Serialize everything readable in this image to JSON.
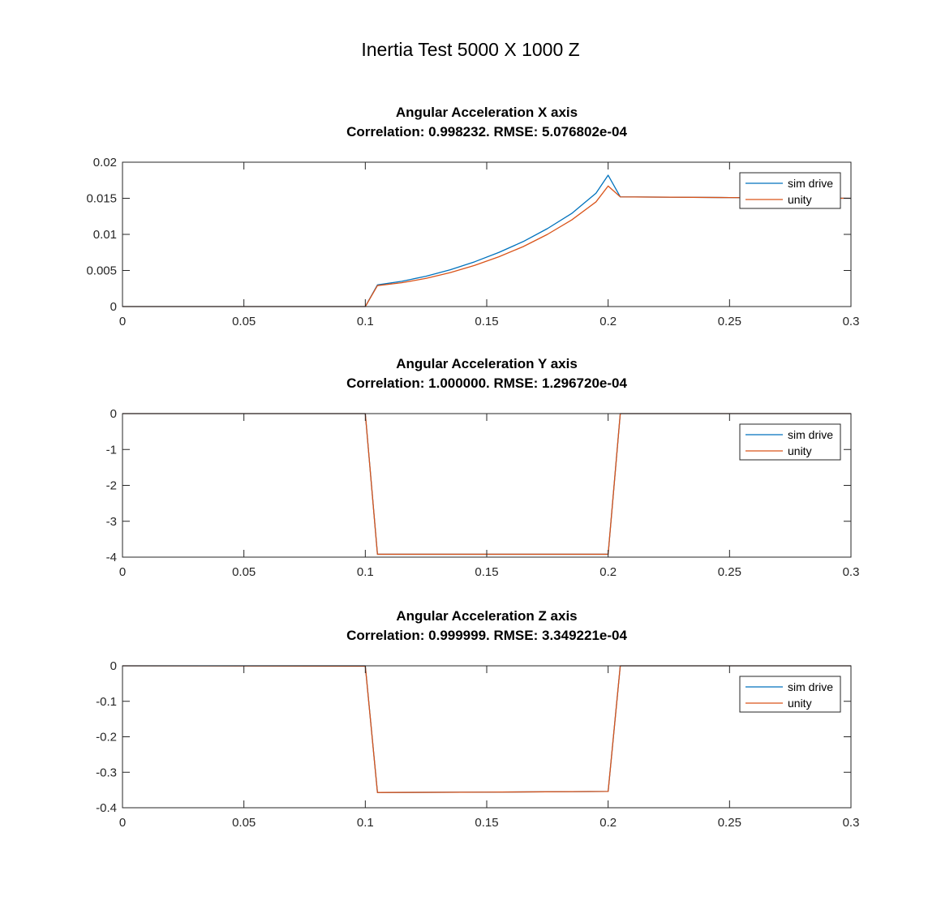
{
  "figure": {
    "suptitle": "Inertia Test 5000 X 1000 Z"
  },
  "colors": {
    "sim_drive": "#0072BD",
    "unity": "#D95319",
    "axes": "#262626",
    "background": "#ffffff"
  },
  "chart_data": [
    {
      "type": "line",
      "title": "Angular Acceleration X axis",
      "subtitle": "Correlation: 0.998232. RMSE: 5.076802e-04",
      "xlabel": "",
      "ylabel": "",
      "xlim": [
        0,
        0.3
      ],
      "ylim": [
        0,
        0.02
      ],
      "xticks": [
        0,
        0.05,
        0.1,
        0.15,
        0.2,
        0.25,
        0.3
      ],
      "xtick_labels": [
        "0",
        "0.05",
        "0.1",
        "0.15",
        "0.2",
        "0.25",
        "0.3"
      ],
      "yticks": [
        0,
        0.005,
        0.01,
        0.015,
        0.02
      ],
      "ytick_labels": [
        "0",
        "0.005",
        "0.01",
        "0.015",
        "0.02"
      ],
      "grid": false,
      "legend_location": "top-right",
      "series": [
        {
          "name": "sim drive",
          "x": [
            0,
            0.1,
            0.105,
            0.115,
            0.125,
            0.135,
            0.145,
            0.155,
            0.165,
            0.175,
            0.185,
            0.195,
            0.2,
            0.205,
            0.25,
            0.3
          ],
          "y": [
            0,
            0,
            0.003,
            0.0035,
            0.0042,
            0.0051,
            0.0062,
            0.0075,
            0.009,
            0.0108,
            0.0129,
            0.0157,
            0.0182,
            0.0152,
            0.0151,
            0.015
          ]
        },
        {
          "name": "unity",
          "x": [
            0,
            0.1,
            0.105,
            0.115,
            0.125,
            0.135,
            0.145,
            0.155,
            0.165,
            0.175,
            0.185,
            0.195,
            0.2,
            0.205,
            0.25,
            0.3
          ],
          "y": [
            0,
            0,
            0.0029,
            0.0033,
            0.0039,
            0.0047,
            0.0057,
            0.0069,
            0.0083,
            0.01,
            0.012,
            0.0145,
            0.0167,
            0.0152,
            0.0151,
            0.015
          ]
        }
      ]
    },
    {
      "type": "line",
      "title": "Angular Acceleration Y axis",
      "subtitle": "Correlation: 1.000000. RMSE: 1.296720e-04",
      "xlabel": "",
      "ylabel": "",
      "xlim": [
        0,
        0.3
      ],
      "ylim": [
        -4,
        0
      ],
      "xticks": [
        0,
        0.05,
        0.1,
        0.15,
        0.2,
        0.25,
        0.3
      ],
      "xtick_labels": [
        "0",
        "0.05",
        "0.1",
        "0.15",
        "0.2",
        "0.25",
        "0.3"
      ],
      "yticks": [
        -4,
        -3,
        -2,
        -1,
        0
      ],
      "ytick_labels": [
        "-4",
        "-3",
        "-2",
        "-1",
        "0"
      ],
      "grid": false,
      "legend_location": "top-right",
      "series": [
        {
          "name": "sim drive",
          "x": [
            0,
            0.1,
            0.105,
            0.2,
            0.205,
            0.3
          ],
          "y": [
            0,
            0,
            -3.92,
            -3.92,
            0,
            0
          ]
        },
        {
          "name": "unity",
          "x": [
            0,
            0.1,
            0.105,
            0.2,
            0.205,
            0.3
          ],
          "y": [
            0,
            0,
            -3.92,
            -3.92,
            0,
            0
          ]
        }
      ]
    },
    {
      "type": "line",
      "title": "Angular Acceleration Z axis",
      "subtitle": "Correlation: 0.999999. RMSE: 3.349221e-04",
      "xlabel": "",
      "ylabel": "",
      "xlim": [
        0,
        0.3
      ],
      "ylim": [
        -0.4,
        0
      ],
      "xticks": [
        0,
        0.05,
        0.1,
        0.15,
        0.2,
        0.25,
        0.3
      ],
      "xtick_labels": [
        "0",
        "0.05",
        "0.1",
        "0.15",
        "0.2",
        "0.25",
        "0.3"
      ],
      "yticks": [
        -0.4,
        -0.3,
        -0.2,
        -0.1,
        0
      ],
      "ytick_labels": [
        "-0.4",
        "-0.3",
        "-0.2",
        "-0.1",
        "0"
      ],
      "grid": false,
      "legend_location": "top-right",
      "series": [
        {
          "name": "sim drive",
          "x": [
            0,
            0.1,
            0.105,
            0.15,
            0.2,
            0.205,
            0.3
          ],
          "y": [
            0,
            0,
            -0.357,
            -0.356,
            -0.354,
            0,
            0
          ]
        },
        {
          "name": "unity",
          "x": [
            0,
            0.1,
            0.105,
            0.15,
            0.2,
            0.205,
            0.3
          ],
          "y": [
            0,
            -0.001,
            -0.357,
            -0.356,
            -0.354,
            0,
            0
          ]
        }
      ]
    }
  ]
}
